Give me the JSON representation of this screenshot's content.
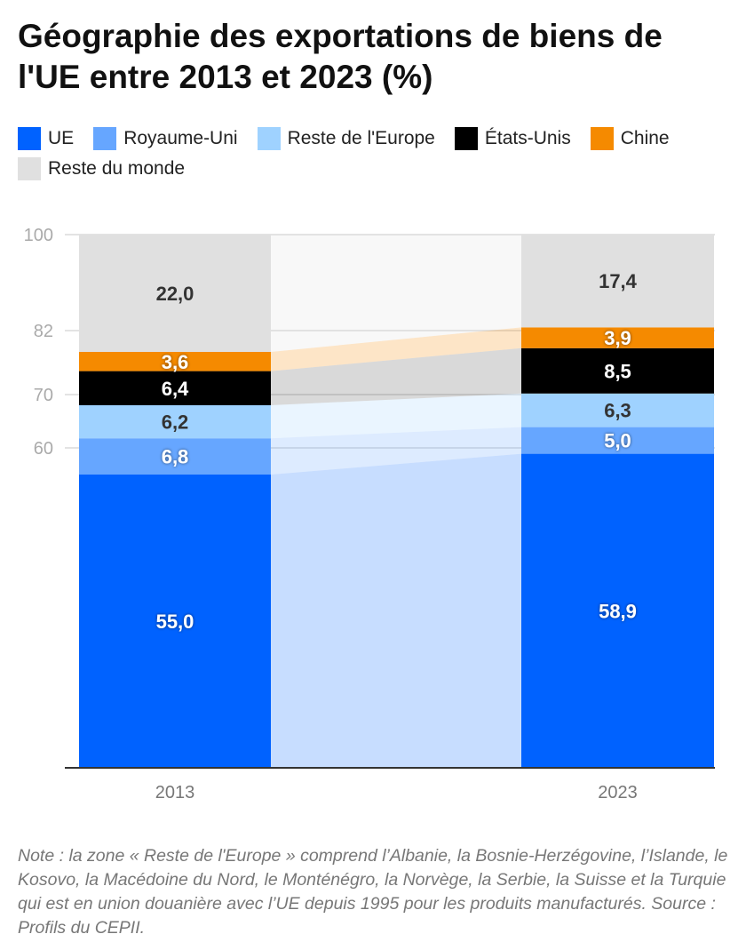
{
  "title": "Géographie des exportations de biens de l'UE entre 2013 et 2023 (%)",
  "note": "Note : la zone « Reste de l'Europe » comprend l’Albanie, la Bosnie-Herzégovine, l’Islande, le Kosovo, la Macédoine du Nord, le Monténégro, la Norvège, la Serbie, la Suisse et la Turquie qui est en union douanière avec l’UE depuis 1995 pour les produits manufacturés. Source : Profils du CEPII.",
  "chart_data": {
    "type": "bar",
    "stacked": true,
    "categories": [
      "2013",
      "2023"
    ],
    "series": [
      {
        "name": "UE",
        "color": "#0062ff",
        "label_color": "#ffffff",
        "values": [
          55.0,
          58.9
        ],
        "labels": [
          "55,0",
          "58,9"
        ]
      },
      {
        "name": "Royaume-Uni",
        "color": "#66a6ff",
        "label_color": "#ffffff",
        "values": [
          6.8,
          5.0
        ],
        "labels": [
          "6,8",
          "5,0"
        ]
      },
      {
        "name": "Reste de l'Europe",
        "color": "#9fd2ff",
        "label_color": "#333333",
        "values": [
          6.2,
          6.3
        ],
        "labels": [
          "6,2",
          "6,3"
        ]
      },
      {
        "name": "États-Unis",
        "color": "#000000",
        "label_color": "#ffffff",
        "values": [
          6.4,
          8.5
        ],
        "labels": [
          "6,4",
          "8,5"
        ]
      },
      {
        "name": "Chine",
        "color": "#f58a00",
        "label_color": "#ffffff",
        "values": [
          3.6,
          3.9
        ],
        "labels": [
          "3,6",
          "3,9"
        ]
      },
      {
        "name": "Reste du monde",
        "color": "#e0e0e0",
        "label_color": "#333333",
        "values": [
          22.0,
          17.4
        ],
        "labels": [
          "22,0",
          "17,4"
        ]
      }
    ],
    "yticks": [
      "60",
      "70",
      "82",
      "100"
    ],
    "ylim": [
      0,
      100
    ],
    "grid": true,
    "legend": "top"
  }
}
